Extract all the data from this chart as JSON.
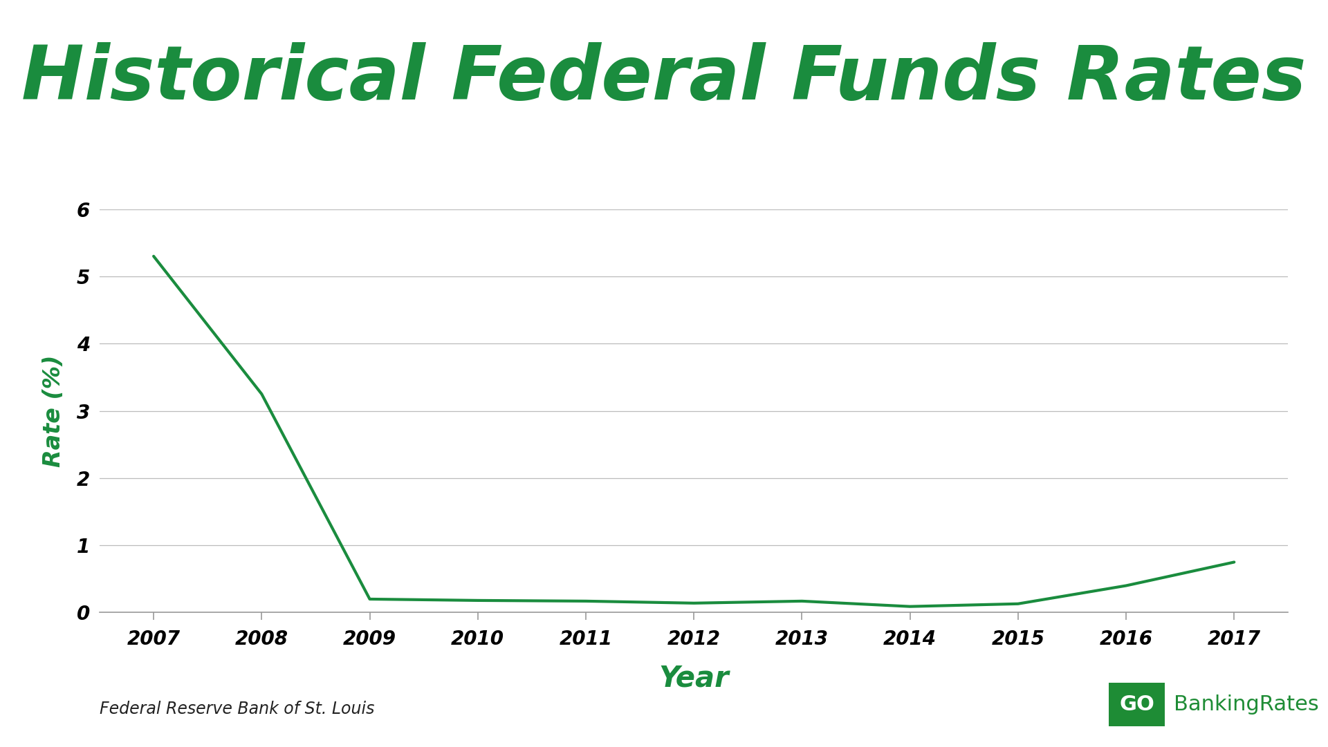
{
  "title": "Historical Federal Funds Rates",
  "xlabel": "Year",
  "ylabel": "Rate (%)",
  "line_color": "#1a8c3e",
  "title_color": "#1a8c3e",
  "label_color": "#1a8c3e",
  "background_color": "#ffffff",
  "grid_color": "#bbbbbb",
  "years": [
    2007,
    2008,
    2009,
    2010,
    2011,
    2012,
    2013,
    2014,
    2015,
    2016,
    2017
  ],
  "rates": [
    5.3,
    3.25,
    0.2,
    0.18,
    0.17,
    0.14,
    0.17,
    0.09,
    0.13,
    0.4,
    0.75
  ],
  "ylim": [
    0,
    6
  ],
  "yticks": [
    0,
    1,
    2,
    3,
    4,
    5,
    6
  ],
  "xlim": [
    2006.5,
    2017.5
  ],
  "source_text": "Federal Reserve Bank of St. Louis",
  "gobr_green": "#1e8c35",
  "line_width": 3.0,
  "tick_fontsize": 20,
  "ylabel_fontsize": 24,
  "xlabel_fontsize": 30,
  "title_fontsize": 78,
  "source_fontsize": 17,
  "logo_fontsize": 22
}
